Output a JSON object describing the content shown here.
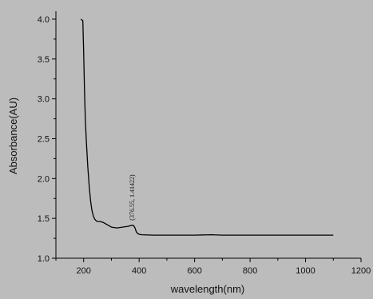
{
  "chart_data": {
    "type": "line",
    "title": "",
    "xlabel": "wavelength(nm)",
    "ylabel": "Absorbance(AU)",
    "xlim": [
      100,
      1200
    ],
    "ylim": [
      1.0,
      4.1
    ],
    "x_ticks": [
      200,
      400,
      600,
      800,
      1000,
      1200
    ],
    "y_ticks": [
      1.0,
      1.5,
      2.0,
      2.5,
      3.0,
      3.5,
      4.0
    ],
    "x_tick_labels": [
      "200",
      "400",
      "600",
      "800",
      "1000",
      "1200"
    ],
    "y_tick_labels": [
      "1.0",
      "1.5",
      "2.0",
      "2.5",
      "3.0",
      "3.5",
      "4.0"
    ],
    "grid": false,
    "legend": "none",
    "series": [
      {
        "x": [
          190,
          197,
          200,
          203,
          206,
          210,
          215,
          220,
          225,
          230,
          235,
          240,
          245,
          250,
          255,
          260,
          270,
          280,
          290,
          300,
          320,
          340,
          360,
          370,
          376.55,
          380,
          385,
          390,
          395,
          400,
          410,
          450,
          500,
          600,
          660,
          700,
          800,
          900,
          1000,
          1100
        ],
        "y": [
          4.0,
          3.98,
          3.6,
          3.1,
          2.75,
          2.45,
          2.15,
          1.9,
          1.72,
          1.6,
          1.53,
          1.49,
          1.47,
          1.46,
          1.46,
          1.46,
          1.45,
          1.43,
          1.41,
          1.39,
          1.38,
          1.39,
          1.4,
          1.41,
          1.41422,
          1.41,
          1.38,
          1.33,
          1.31,
          1.3,
          1.295,
          1.29,
          1.29,
          1.29,
          1.295,
          1.29,
          1.29,
          1.29,
          1.29,
          1.29
        ]
      }
    ],
    "annotations": [
      {
        "text": "(376.55, 1.41422)",
        "x": 376.55,
        "y": 1.41422
      }
    ],
    "colors": {
      "line": "#000000",
      "background": "#bcbcbc"
    }
  }
}
